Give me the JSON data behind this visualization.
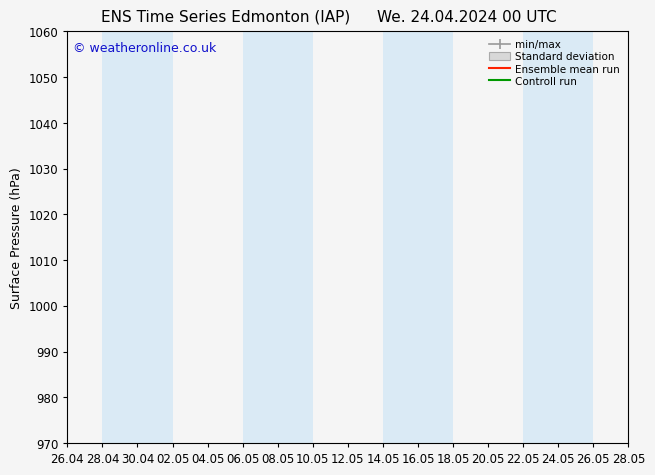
{
  "title_left": "ENS Time Series Edmonton (IAP)",
  "title_right": "We. 24.04.2024 00 UTC",
  "ylabel": "Surface Pressure (hPa)",
  "watermark": "© weatheronline.co.uk",
  "ylim": [
    970,
    1060
  ],
  "yticks": [
    970,
    980,
    990,
    1000,
    1010,
    1020,
    1030,
    1040,
    1050,
    1060
  ],
  "xtick_labels": [
    "26.04",
    "28.04",
    "30.04",
    "02.05",
    "04.05",
    "06.05",
    "08.05",
    "10.05",
    "12.05",
    "14.05",
    "16.05",
    "18.05",
    "20.05",
    "22.05",
    "24.05",
    "26.05",
    "28.05"
  ],
  "background_color": "#f5f5f5",
  "plot_bg_color": "#f5f5f5",
  "band_color": "#daeaf5",
  "band_alpha": 1.0,
  "band_indices": [
    1,
    2,
    5,
    6,
    9,
    10,
    13,
    14
  ],
  "legend_labels": [
    "min/max",
    "Standard deviation",
    "Ensemble mean run",
    "Controll run"
  ],
  "legend_colors": [
    "#aaaaaa",
    "#cccccc",
    "#ff2200",
    "#009900"
  ],
  "title_fontsize": 11,
  "tick_fontsize": 8.5,
  "ylabel_fontsize": 9,
  "watermark_color": "#1111cc",
  "watermark_fontsize": 9
}
